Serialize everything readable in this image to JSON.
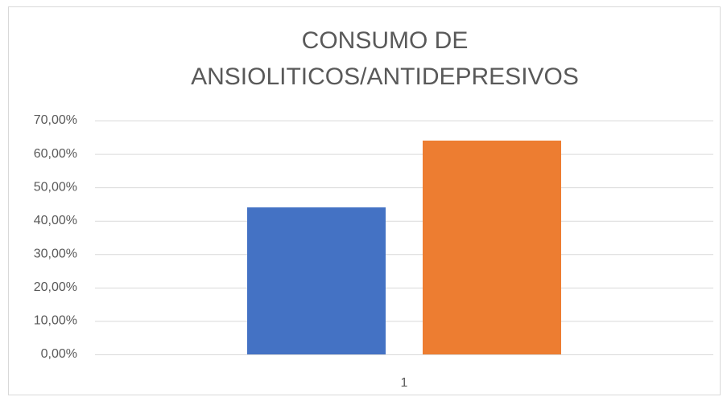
{
  "chart_data": {
    "type": "bar",
    "title": [
      "CONSUMO DE",
      "ANSIOLITICOS/ANTIDEPRESIVOS"
    ],
    "categories": [
      "1"
    ],
    "series": [
      {
        "color": "#4472c4",
        "values": [
          44
        ]
      },
      {
        "color": "#ed7d31",
        "values": [
          64
        ]
      }
    ],
    "ylim": [
      0,
      70
    ],
    "yticks": [
      {
        "value": 0,
        "label": "0,00%"
      },
      {
        "value": 10,
        "label": "10,00%"
      },
      {
        "value": 20,
        "label": "20,00%"
      },
      {
        "value": 30,
        "label": "30,00%"
      },
      {
        "value": 40,
        "label": "40,00%"
      },
      {
        "value": 50,
        "label": "50,00%"
      },
      {
        "value": 60,
        "label": "60,00%"
      },
      {
        "value": 70,
        "label": "70,00%"
      }
    ],
    "grid": true
  }
}
